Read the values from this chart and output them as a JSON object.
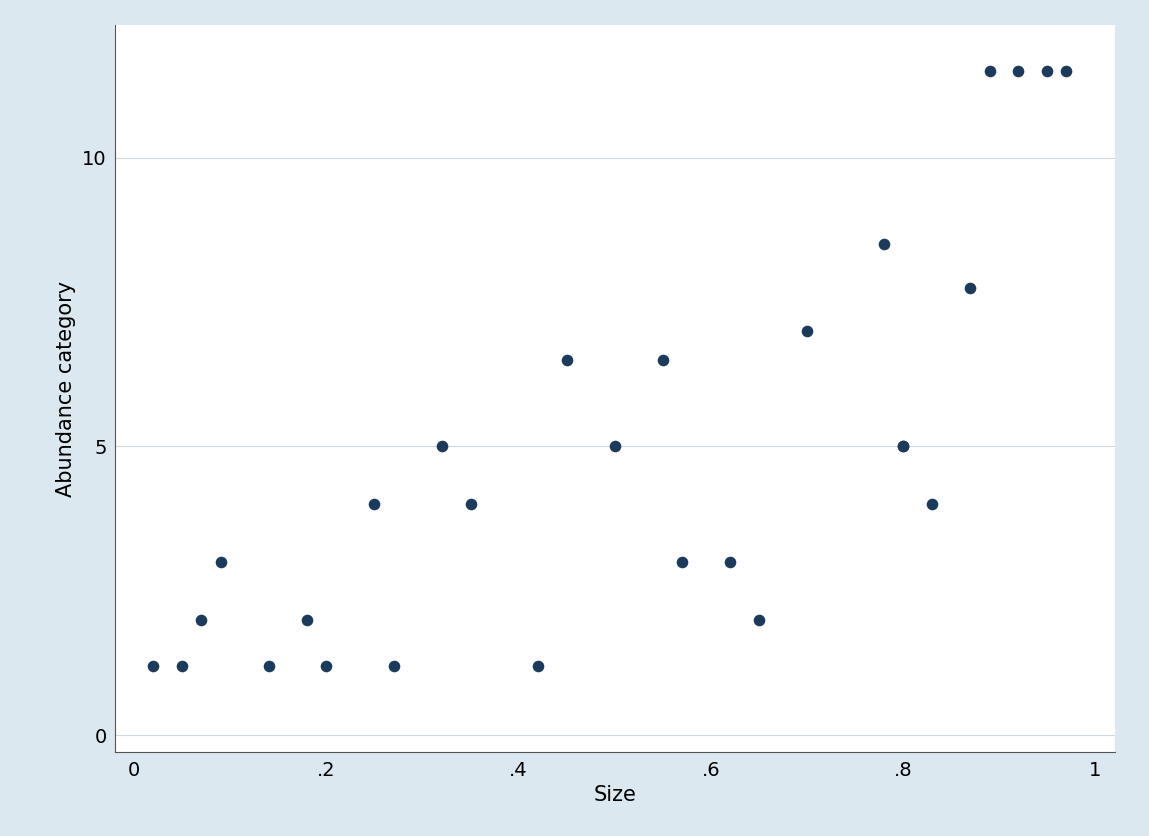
{
  "all_x": [
    0.02,
    0.05,
    0.07,
    0.09,
    0.14,
    0.18,
    0.2,
    0.25,
    0.27,
    0.32,
    0.35,
    0.42,
    0.45,
    0.5,
    0.55,
    0.57,
    0.62,
    0.65,
    0.7,
    0.78,
    0.8,
    0.8,
    0.83,
    0.87,
    0.89,
    0.92,
    0.95,
    0.97
  ],
  "all_y": [
    1.2,
    1.2,
    2.0,
    3.0,
    1.2,
    2.0,
    1.2,
    4.0,
    1.2,
    5.0,
    4.0,
    1.2,
    6.5,
    5.0,
    6.5,
    3.0,
    3.0,
    2.0,
    7.0,
    8.5,
    5.0,
    5.0,
    4.0,
    7.75,
    11.5,
    11.5,
    11.5,
    11.5
  ],
  "dot_color": "#1b3a5c",
  "marker_size": 70,
  "bg_color": "#dce8f0",
  "plot_bg_color": "#ffffff",
  "xlabel": "Size",
  "ylabel": "Abundance category",
  "xlim": [
    -0.02,
    1.02
  ],
  "ylim": [
    -0.3,
    12.3
  ],
  "xticks": [
    0,
    0.2,
    0.4,
    0.6,
    0.8,
    1.0
  ],
  "yticks": [
    0,
    5,
    10
  ],
  "xtick_labels": [
    "0",
    ".2",
    ".4",
    ".6",
    ".8",
    "1"
  ],
  "ytick_labels": [
    "0",
    "5",
    "10"
  ],
  "grid_color": "#d0d8e0",
  "label_fontsize": 15,
  "tick_fontsize": 14,
  "spine_color": "#555555"
}
